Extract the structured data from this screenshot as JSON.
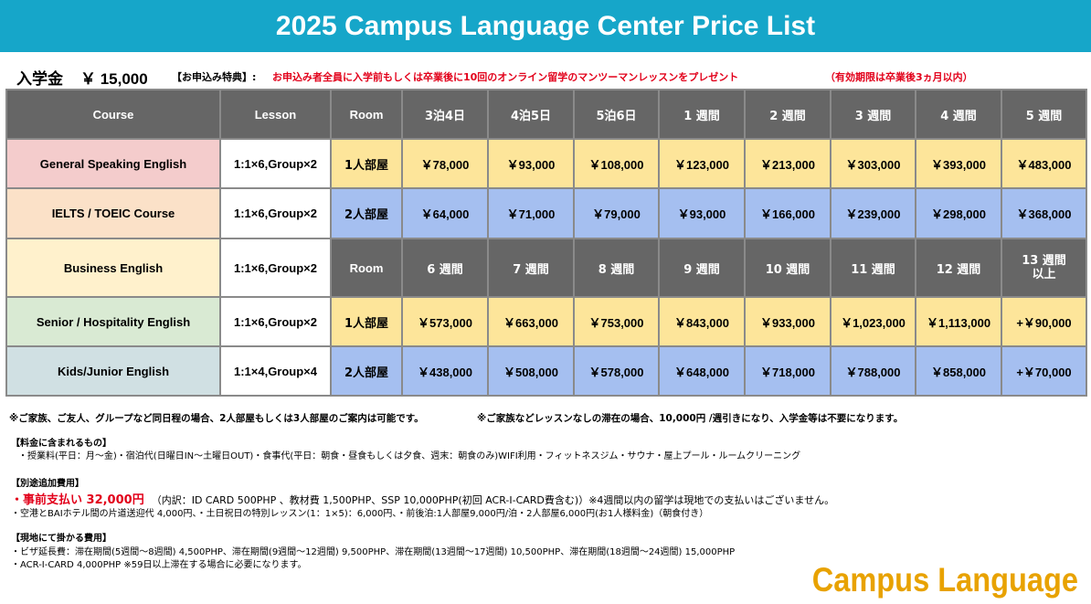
{
  "title": "2025 Campus Language Center Price List",
  "entry": {
    "label": "入学金",
    "fee": "￥ 15,000",
    "perk_label": "【お申込み特典】:",
    "perk_text": "お申込み者全員に入学前もしくは卒業後に10回のオンライン留学のマンツーマンレッスンをプレゼント",
    "perk_note": "（有効期限は卒業後3ヵ月以内）"
  },
  "table": {
    "header_row1": [
      "Course",
      "Lesson",
      "Room",
      "3泊4日",
      "4泊5日",
      "5泊6日",
      "1 週間",
      "2 週間",
      "3 週間",
      "4 週間",
      "5 週間"
    ],
    "header_row2": [
      "Room",
      "6 週間",
      "7 週間",
      "8 週間",
      "9 週間",
      "10 週間",
      "11 週間",
      "12 週間"
    ],
    "header_row2_last": [
      "13 週間",
      "以上"
    ],
    "courses": [
      {
        "name": "General Speaking English",
        "lesson": "1:1×6,Group×2",
        "color": "#f4cccc"
      },
      {
        "name": "IELTS / TOEIC Course",
        "lesson": "1:1×6,Group×2",
        "color": "#fbe1c8"
      },
      {
        "name": "Business English",
        "lesson": "1:1×6,Group×2",
        "color": "#fff1cc"
      },
      {
        "name": "Senior / Hospitality English",
        "lesson": "1:1×6,Group×2",
        "color": "#d9ead3"
      },
      {
        "name": "Kids/Junior English",
        "lesson": "1:1×4,Group×4",
        "color": "#d0e0e3"
      }
    ],
    "price_rows": [
      {
        "room": "1人部屋",
        "values": [
          "￥78,000",
          "￥93,000",
          "￥108,000",
          "￥123,000",
          "￥213,000",
          "￥303,000",
          "￥393,000",
          "￥483,000"
        ]
      },
      {
        "room": "2人部屋",
        "values": [
          "￥64,000",
          "￥71,000",
          "￥79,000",
          "￥93,000",
          "￥166,000",
          "￥239,000",
          "￥298,000",
          "￥368,000"
        ]
      },
      {
        "room": "1人部屋",
        "values": [
          "￥573,000",
          "￥663,000",
          "￥753,000",
          "￥843,000",
          "￥933,000",
          "￥1,023,000",
          "￥1,113,000",
          "+￥90,000"
        ]
      },
      {
        "room": "2人部屋",
        "values": [
          "￥438,000",
          "￥508,000",
          "￥578,000",
          "￥648,000",
          "￥718,000",
          "￥788,000",
          "￥858,000",
          "+￥70,000"
        ]
      }
    ]
  },
  "notes": {
    "family_note": "※ご家族、ご友人、グループなど同日程の場合、2人部屋もしくは3人部屋のご案内は可能です。",
    "no_lesson_note": "※ご家族などレッスンなしの滞在の場合、10,000円 /週引きになり、入学金等は不要になります。",
    "included_heading": "【料金に含まれるもの】",
    "included_text": "・授業料(平日：月～金)・宿泊代(日曜日IN～土曜日OUT)・食事代(平日：朝食・昼食もしくは夕食、週末：朝食のみ)WIFI利用・フィットネスジム・サウナ・屋上プール・ルームクリーニング",
    "extra_heading": "【別途追加費用】",
    "prepay_label": "・事前支払い 32,000円",
    "prepay_detail": "（内訳：ID CARD 500PHP 、教材費 1,500PHP、SSP 10,000PHP(初回 ACR-I-CARD費含む)）※4週間以内の留学は現地での支払いはございません。",
    "extra_text": "・空港とBAIホテル間の片道送迎代 4,000円、・土日祝日の特別レッスン(1：1×5)：6,000円、・前後泊:1人部屋9,000円/泊・2人部屋6,000円(お1人様料金)（朝食付き）",
    "local_heading": "【現地にて掛かる費用】",
    "local_text1": "・ビザ延長費：滞在期間(5週間～8週間) 4,500PHP、滞在期間(9週間～12週間) 9,500PHP、滞在期間(13週間～17週間) 10,500PHP、滞在期間(18週間～24週間) 15,000PHP",
    "local_text2": "・ACR-I-CARD 4,000PHP ※59日以上滞在する場合に必要になります。"
  },
  "logo_text": "Campus Language Center",
  "colors": {
    "banner": "#16a6c9",
    "header_cell": "#666666",
    "yellow_cell": "#fde59a",
    "blue_cell": "#a5bff0",
    "accent_red": "#e2001a",
    "logo": "#e8a200"
  }
}
